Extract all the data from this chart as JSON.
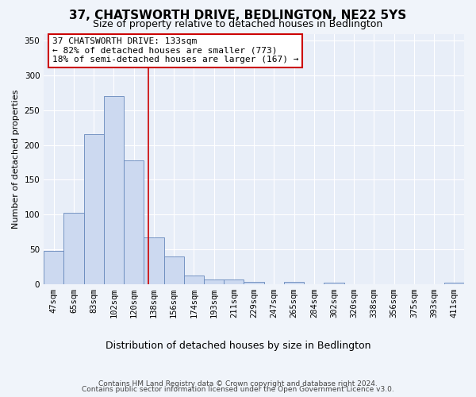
{
  "title": "37, CHATSWORTH DRIVE, BEDLINGTON, NE22 5YS",
  "subtitle": "Size of property relative to detached houses in Bedlington",
  "xlabel": "Distribution of detached houses by size in Bedlington",
  "ylabel": "Number of detached properties",
  "bar_labels": [
    "47sqm",
    "65sqm",
    "83sqm",
    "102sqm",
    "120sqm",
    "138sqm",
    "156sqm",
    "174sqm",
    "193sqm",
    "211sqm",
    "229sqm",
    "247sqm",
    "265sqm",
    "284sqm",
    "302sqm",
    "320sqm",
    "338sqm",
    "356sqm",
    "375sqm",
    "393sqm",
    "411sqm"
  ],
  "bar_values": [
    47,
    102,
    215,
    270,
    178,
    67,
    39,
    12,
    7,
    7,
    3,
    0,
    3,
    0,
    2,
    0,
    0,
    0,
    0,
    0,
    2
  ],
  "bar_color": "#ccd9f0",
  "bar_edge_color": "#6688bb",
  "background_color": "#e8eef8",
  "grid_color": "#ffffff",
  "annotation_line1": "37 CHATSWORTH DRIVE: 133sqm",
  "annotation_line2": "← 82% of detached houses are smaller (773)",
  "annotation_line3": "18% of semi-detached houses are larger (167) →",
  "annotation_box_color": "#ffffff",
  "annotation_box_edge": "#cc0000",
  "ylim": [
    0,
    360
  ],
  "yticks": [
    0,
    50,
    100,
    150,
    200,
    250,
    300,
    350
  ],
  "footnote_line1": "Contains HM Land Registry data © Crown copyright and database right 2024.",
  "footnote_line2": "Contains public sector information licensed under the Open Government Licence v3.0.",
  "title_fontsize": 11,
  "subtitle_fontsize": 9,
  "xlabel_fontsize": 9,
  "ylabel_fontsize": 8,
  "tick_fontsize": 7.5,
  "ann_fontsize": 8,
  "footnote_fontsize": 6.5
}
